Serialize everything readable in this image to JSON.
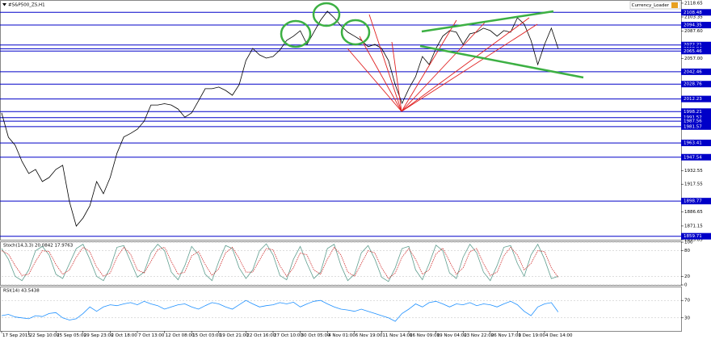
{
  "chart_data": [
    {
      "type": "line",
      "title": "#S&P500_ZS,H1",
      "indicator": "Currency_Loader",
      "color": "#000000",
      "level_color": "#0000c8",
      "xlim": [
        0,
        100
      ],
      "ylim": [
        1855.85,
        2122.2
      ],
      "xticks": [
        {
          "value": 0,
          "label": "17 Sep 2015"
        },
        {
          "value": 4,
          "label": "22 Sep 10:00"
        },
        {
          "value": 8,
          "label": "25 Sep 05:00"
        },
        {
          "value": 12,
          "label": "29 Sep 23:00"
        },
        {
          "value": 16,
          "label": "2 Oct 18:00"
        },
        {
          "value": 20,
          "label": "7 Oct 13:00"
        },
        {
          "value": 24,
          "label": "12 Oct 08:00"
        },
        {
          "value": 28,
          "label": "15 Oct 03:00"
        },
        {
          "value": 32,
          "label": "19 Oct 21:00"
        },
        {
          "value": 36,
          "label": "22 Oct 16:00"
        },
        {
          "value": 40,
          "label": "27 Oct 10:00"
        },
        {
          "value": 44,
          "label": "30 Oct 05:00"
        },
        {
          "value": 48,
          "label": "4 Nov 01:00"
        },
        {
          "value": 52,
          "label": "6 Nov 19:00"
        },
        {
          "value": 56,
          "label": "11 Nov 14:00"
        },
        {
          "value": 60,
          "label": "16 Nov 09:00"
        },
        {
          "value": 64,
          "label": "19 Nov 04:00"
        },
        {
          "value": 68,
          "label": "23 Nov 22:00"
        },
        {
          "value": 72,
          "label": "26 Nov 17:00"
        },
        {
          "value": 76,
          "label": "1 Dec 19:00"
        },
        {
          "value": 80,
          "label": "4 Dec 14:00"
        }
      ],
      "yticks": [
        2118.65,
        2103.35,
        {
          "value": 2087.6,
          "label": "2087.60"
        },
        {
          "value": 2057,
          "label": "2057.00"
        },
        1932.55,
        1917.55,
        1886.65,
        1871.15,
        1855.85
      ],
      "levels": [
        2108.48,
        2094.35,
        2072.21,
        2068.04,
        2065.46,
        2042.46,
        2028.76,
        2012.23,
        1998.21,
        1991.52,
        1987.56,
        1981.57,
        1963.41,
        1947.54,
        1898.77,
        1859.71
      ],
      "values": [
        1996.7,
        1969.7,
        1960.8,
        1942.8,
        1929.4,
        1934,
        1920.5,
        1925,
        1934,
        1938.5,
        1898,
        1871,
        1880,
        1893.5,
        1920.5,
        1907,
        1925,
        1952,
        1970,
        1974,
        1978.6,
        1987.5,
        2005.5,
        2005.5,
        2007,
        2005.5,
        2001,
        1992,
        1996.7,
        2010,
        2023.6,
        2023.6,
        2025.4,
        2021.8,
        2016.4,
        2028,
        2055,
        2068.4,
        2061.2,
        2057.6,
        2059.4,
        2066.6,
        2077.4,
        2082,
        2088,
        2072.9,
        2086.4,
        2099.8,
        2109.7,
        2102.5,
        2093.5,
        2086.4,
        2082,
        2077.4,
        2070.3,
        2072.9,
        2068.4,
        2055,
        2028,
        2007.4,
        2023.6,
        2037,
        2059.4,
        2050.5,
        2068.4,
        2082,
        2088.2,
        2086.4,
        2072.9,
        2084.6,
        2086.4,
        2090.9,
        2088.2,
        2082,
        2088.2,
        2086.4,
        2102.5,
        2095.4,
        2077.4,
        2050.5,
        2072.9,
        2090.9,
        2068.4
      ]
    },
    {
      "type": "line",
      "title": "Stoch(14,3,3) 20.0842 17.9763",
      "ylim": [
        0,
        100
      ],
      "yticks": [
        0,
        20,
        80,
        100
      ],
      "series": [
        {
          "color": "#5f9e8f",
          "values": [
            85,
            60,
            20,
            10,
            35,
            80,
            90,
            70,
            25,
            15,
            50,
            85,
            95,
            60,
            20,
            10,
            40,
            88,
            92,
            55,
            18,
            30,
            75,
            95,
            80,
            30,
            12,
            45,
            90,
            70,
            25,
            10,
            55,
            92,
            85,
            40,
            15,
            35,
            80,
            96,
            70,
            22,
            12,
            60,
            90,
            50,
            15,
            30,
            85,
            95,
            45,
            10,
            25,
            75,
            92,
            60,
            18,
            8,
            40,
            85,
            90,
            35,
            12,
            50,
            93,
            80,
            28,
            15,
            65,
            95,
            75,
            30,
            10,
            45,
            88,
            92,
            50,
            20,
            70,
            95,
            60,
            15,
            20.0842
          ]
        },
        {
          "color": "#d03030",
          "values": [
            80,
            72,
            45,
            22,
            25,
            55,
            80,
            78,
            48,
            25,
            35,
            65,
            88,
            78,
            42,
            20,
            28,
            65,
            88,
            72,
            35,
            28,
            55,
            82,
            88,
            55,
            25,
            30,
            68,
            78,
            48,
            22,
            38,
            75,
            88,
            62,
            30,
            30,
            58,
            85,
            82,
            45,
            20,
            40,
            75,
            70,
            35,
            25,
            60,
            88,
            70,
            30,
            20,
            50,
            80,
            75,
            40,
            15,
            28,
            65,
            85,
            60,
            25,
            35,
            72,
            86,
            55,
            25,
            40,
            78,
            85,
            50,
            22,
            30,
            68,
            88,
            70,
            35,
            50,
            80,
            78,
            40,
            17.9763
          ]
        }
      ]
    },
    {
      "type": "line",
      "title": "RSI(14) 43.5438",
      "ylim": [
        0,
        100
      ],
      "yticks": [
        30,
        70
      ],
      "series": [
        {
          "color": "#1e90ff",
          "values": [
            35,
            38,
            32,
            30,
            28,
            35,
            33,
            40,
            42,
            30,
            25,
            28,
            40,
            55,
            45,
            55,
            60,
            58,
            62,
            65,
            60,
            68,
            62,
            58,
            50,
            55,
            60,
            62,
            55,
            50,
            58,
            65,
            62,
            55,
            50,
            60,
            70,
            62,
            55,
            58,
            60,
            65,
            62,
            66,
            55,
            62,
            68,
            70,
            62,
            55,
            50,
            48,
            45,
            50,
            45,
            40,
            35,
            30,
            22,
            40,
            50,
            62,
            55,
            65,
            68,
            62,
            55,
            62,
            60,
            65,
            58,
            62,
            60,
            55,
            62,
            68,
            60,
            45,
            35,
            55,
            62,
            65,
            43.5438
          ]
        }
      ]
    }
  ]
}
